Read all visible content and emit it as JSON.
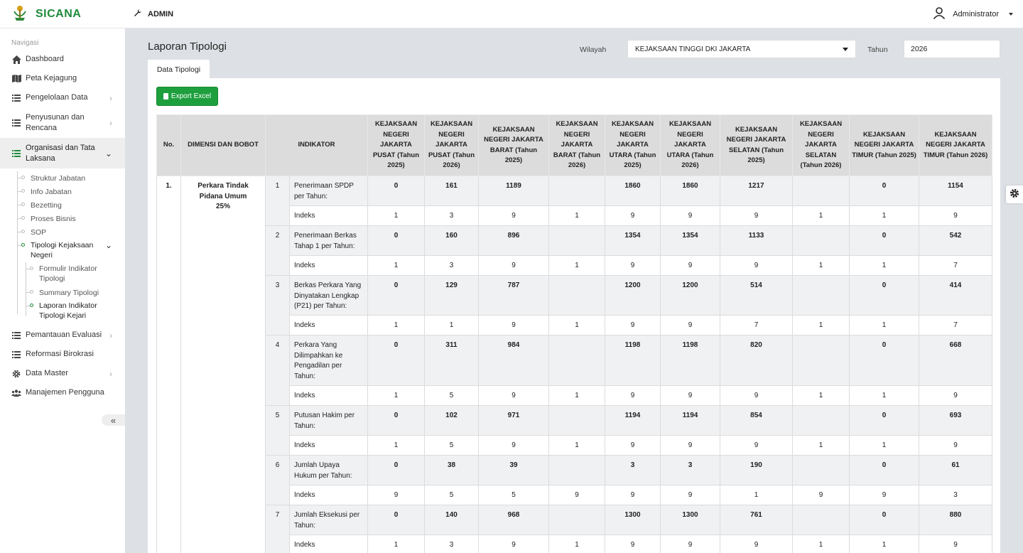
{
  "app": {
    "name": "SICANA",
    "role": "ADMIN",
    "user": "Administrator"
  },
  "sidebar": {
    "header": "Navigasi",
    "items": [
      {
        "label": "Dashboard",
        "icon": "home-icon",
        "chevron": false
      },
      {
        "label": "Peta Kejagung",
        "icon": "map-icon",
        "chevron": false
      },
      {
        "label": "Pengelolaan Data",
        "icon": "list-icon",
        "chevron": true
      },
      {
        "label": "Penyusunan dan Rencana",
        "icon": "list-icon",
        "chevron": true
      },
      {
        "label": "Organisasi dan Tata Laksana",
        "icon": "list-icon",
        "chevron": true,
        "expanded": true
      }
    ],
    "subitems": [
      "Struktur Jabatan",
      "Info Jabatan",
      "Bezetting",
      "Proses Bisnis",
      "SOP",
      "Tipologi Kejaksaan Negeri"
    ],
    "subsubitems": [
      "Formulir Indikator Tipologi",
      "Summary Tipologi",
      "Laporan Indikator Tipologi Kejari"
    ],
    "items_after": [
      {
        "label": "Pemantauan Evaluasi",
        "icon": "list-icon",
        "chevron": true
      },
      {
        "label": "Reformasi Birokrasi",
        "icon": "list-icon",
        "chevron": false
      },
      {
        "label": "Data Master",
        "icon": "gear-icon",
        "chevron": true
      },
      {
        "label": "Manajemen Pengguna",
        "icon": "users-icon",
        "chevron": false
      }
    ],
    "collapse_glyph": "«"
  },
  "page": {
    "title": "Laporan Tipologi",
    "wilayah_label": "Wilayah",
    "wilayah_value": "KEJAKSAAN TINGGI DKI JAKARTA",
    "tahun_label": "Tahun",
    "tahun_value": "2026",
    "tab": "Data Tipologi",
    "export_label": "Export Excel"
  },
  "table": {
    "headers": {
      "no": "No.",
      "dimensi": "DIMENSI DAN BOBOT",
      "indikator": "INDIKATOR",
      "cols": [
        "KEJAKSAAN NEGERI JAKARTA PUSAT (Tahun 2025)",
        "KEJAKSAAN NEGERI JAKARTA PUSAT (Tahun 2026)",
        "KEJAKSAAN NEGERI JAKARTA BARAT (Tahun 2025)",
        "KEJAKSAAN NEGERI JAKARTA BARAT (Tahun 2026)",
        "KEJAKSAAN NEGERI JAKARTA UTARA (Tahun 2025)",
        "KEJAKSAAN NEGERI JAKARTA UTARA (Tahun 2026)",
        "KEJAKSAAN NEGERI JAKARTA SELATAN (Tahun 2025)",
        "KEJAKSAAN NEGERI JAKARTA SELATAN (Tahun 2026)",
        "KEJAKSAAN NEGERI JAKARTA TIMUR (Tahun 2025)",
        "KEJAKSAAN NEGERI JAKARTA TIMUR (Tahun 2026)"
      ]
    },
    "group": {
      "no": "1.",
      "dimensi": "Perkara Tindak Pidana Umum",
      "bobot": "25%"
    },
    "index_label": "Indeks",
    "rows": [
      {
        "num": "1",
        "indikator": "Penerimaan SPDP per Tahun:",
        "values": [
          "0",
          "161",
          "1189",
          "",
          "1860",
          "1860",
          "1217",
          "",
          "0",
          "1154"
        ],
        "index": [
          "1",
          "3",
          "9",
          "1",
          "9",
          "9",
          "9",
          "1",
          "1",
          "9"
        ]
      },
      {
        "num": "2",
        "indikator": "Penerimaan Berkas Tahap 1 per Tahun:",
        "values": [
          "0",
          "160",
          "896",
          "",
          "1354",
          "1354",
          "1133",
          "",
          "0",
          "542"
        ],
        "index": [
          "1",
          "3",
          "9",
          "1",
          "9",
          "9",
          "9",
          "1",
          "1",
          "7"
        ]
      },
      {
        "num": "3",
        "indikator": "Berkas Perkara Yang Dinyatakan Lengkap (P21) per Tahun:",
        "values": [
          "0",
          "129",
          "787",
          "",
          "1200",
          "1200",
          "514",
          "",
          "0",
          "414"
        ],
        "index": [
          "1",
          "1",
          "9",
          "1",
          "9",
          "9",
          "7",
          "1",
          "1",
          "7"
        ]
      },
      {
        "num": "4",
        "indikator": "Perkara Yang Dilimpahkan ke Pengadilan per Tahun:",
        "values": [
          "0",
          "311",
          "984",
          "",
          "1198",
          "1198",
          "820",
          "",
          "0",
          "668"
        ],
        "index": [
          "1",
          "5",
          "9",
          "1",
          "9",
          "9",
          "9",
          "1",
          "1",
          "9"
        ]
      },
      {
        "num": "5",
        "indikator": "Putusan Hakim per Tahun:",
        "values": [
          "0",
          "102",
          "971",
          "",
          "1194",
          "1194",
          "854",
          "",
          "0",
          "693"
        ],
        "index": [
          "1",
          "5",
          "9",
          "1",
          "9",
          "9",
          "9",
          "1",
          "1",
          "9"
        ]
      },
      {
        "num": "6",
        "indikator": "Jumlah Upaya Hukum per Tahun:",
        "values": [
          "0",
          "38",
          "39",
          "",
          "3",
          "3",
          "190",
          "",
          "0",
          "61"
        ],
        "index": [
          "9",
          "5",
          "5",
          "9",
          "9",
          "9",
          "1",
          "9",
          "9",
          "3"
        ]
      },
      {
        "num": "7",
        "indikator": "Jumlah Eksekusi per Tahun:",
        "values": [
          "0",
          "140",
          "968",
          "",
          "1300",
          "1300",
          "761",
          "",
          "0",
          "880"
        ],
        "index": [
          "1",
          "3",
          "9",
          "1",
          "9",
          "9",
          "9",
          "1",
          "1",
          "9"
        ]
      }
    ]
  }
}
